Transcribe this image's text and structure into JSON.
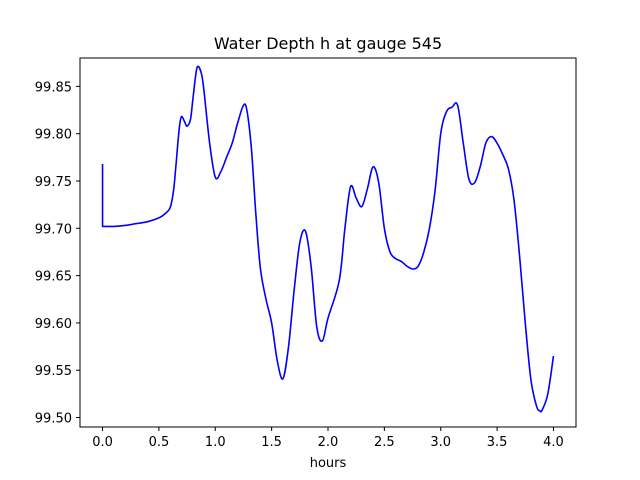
{
  "chart_data": {
    "type": "line",
    "title": "Water Depth h at gauge 545",
    "xlabel": "hours",
    "ylabel": "",
    "xlim": [
      -0.2,
      4.2
    ],
    "ylim": [
      99.49,
      99.88
    ],
    "xticks": [
      0.0,
      0.5,
      1.0,
      1.5,
      2.0,
      2.5,
      3.0,
      3.5,
      4.0
    ],
    "xtick_labels": [
      "0.0",
      "0.5",
      "1.0",
      "1.5",
      "2.0",
      "2.5",
      "3.0",
      "3.5",
      "4.0"
    ],
    "yticks": [
      99.5,
      99.55,
      99.6,
      99.65,
      99.7,
      99.75,
      99.8,
      99.85
    ],
    "ytick_labels": [
      "99.50",
      "99.55",
      "99.60",
      "99.65",
      "99.70",
      "99.75",
      "99.80",
      "99.85"
    ],
    "grid": false,
    "series": [
      {
        "color": "#0000ff",
        "x": [
          0.0,
          0.0,
          0.1,
          0.2,
          0.3,
          0.4,
          0.5,
          0.55,
          0.6,
          0.63,
          0.65,
          0.68,
          0.7,
          0.73,
          0.75,
          0.78,
          0.8,
          0.83,
          0.85,
          0.88,
          0.9,
          0.95,
          1.0,
          1.05,
          1.1,
          1.15,
          1.2,
          1.25,
          1.28,
          1.32,
          1.36,
          1.4,
          1.45,
          1.5,
          1.55,
          1.6,
          1.65,
          1.7,
          1.75,
          1.8,
          1.85,
          1.9,
          1.95,
          2.0,
          2.1,
          2.15,
          2.2,
          2.25,
          2.3,
          2.35,
          2.4,
          2.45,
          2.5,
          2.55,
          2.6,
          2.65,
          2.7,
          2.75,
          2.8,
          2.85,
          2.9,
          2.95,
          3.0,
          3.05,
          3.1,
          3.15,
          3.2,
          3.25,
          3.3,
          3.35,
          3.4,
          3.45,
          3.5,
          3.55,
          3.6,
          3.65,
          3.7,
          3.75,
          3.8,
          3.85,
          3.88,
          3.9,
          3.95,
          4.0
        ],
        "y": [
          99.768,
          99.702,
          99.702,
          99.703,
          99.705,
          99.707,
          99.711,
          99.715,
          99.722,
          99.74,
          99.765,
          99.805,
          99.818,
          99.812,
          99.808,
          99.815,
          99.835,
          99.865,
          99.871,
          99.862,
          99.845,
          99.79,
          99.754,
          99.76,
          99.775,
          99.79,
          99.812,
          99.83,
          99.825,
          99.785,
          99.715,
          99.658,
          99.625,
          99.6,
          99.56,
          99.541,
          99.575,
          99.635,
          99.685,
          99.697,
          99.66,
          99.596,
          99.581,
          99.605,
          99.645,
          99.7,
          99.744,
          99.732,
          99.723,
          99.742,
          99.765,
          99.748,
          99.7,
          99.675,
          99.668,
          99.665,
          99.66,
          99.657,
          99.66,
          99.675,
          99.7,
          99.74,
          99.8,
          99.823,
          99.828,
          99.83,
          99.79,
          99.752,
          99.748,
          99.765,
          99.79,
          99.797,
          99.79,
          99.778,
          99.763,
          99.73,
          99.67,
          99.6,
          99.54,
          99.512,
          99.507,
          99.508,
          99.525,
          99.565
        ]
      }
    ]
  }
}
